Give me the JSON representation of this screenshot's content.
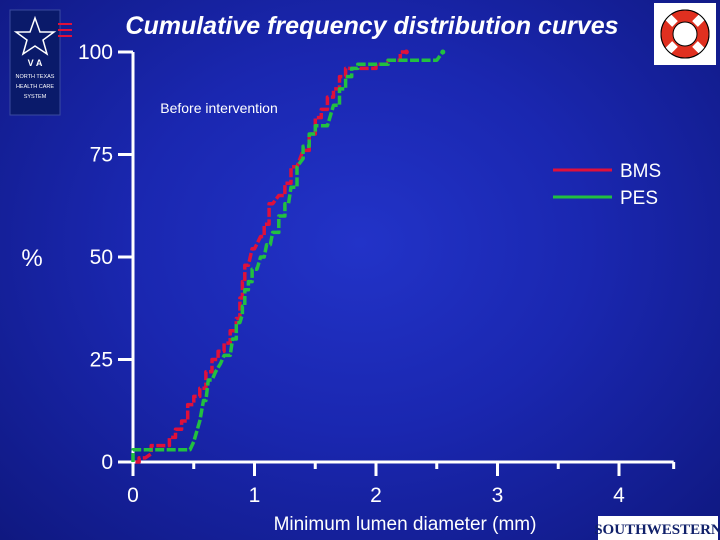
{
  "chart_data": {
    "type": "line",
    "title": "Cumulative frequency distribution curves",
    "annotation": "Before intervention",
    "xlabel": "Minimum lumen diameter (mm)",
    "ylabel": "%",
    "xlim": [
      0,
      4.45
    ],
    "ylim": [
      0,
      100
    ],
    "x_ticks": [
      "0",
      "1",
      "2",
      "3",
      "4"
    ],
    "y_ticks": [
      "0",
      "25",
      "50",
      "75",
      "100"
    ],
    "legend_position": "right",
    "series": [
      {
        "name": "BMS",
        "color": "#e0103a",
        "points": [
          [
            0.02,
            0
          ],
          [
            0.05,
            0
          ],
          [
            0.05,
            1
          ],
          [
            0.1,
            1
          ],
          [
            0.15,
            2
          ],
          [
            0.15,
            4
          ],
          [
            0.3,
            4
          ],
          [
            0.3,
            6
          ],
          [
            0.35,
            6
          ],
          [
            0.35,
            8
          ],
          [
            0.4,
            8
          ],
          [
            0.4,
            10
          ],
          [
            0.45,
            10
          ],
          [
            0.45,
            14
          ],
          [
            0.5,
            14
          ],
          [
            0.5,
            16
          ],
          [
            0.55,
            16
          ],
          [
            0.55,
            18
          ],
          [
            0.6,
            18
          ],
          [
            0.6,
            22
          ],
          [
            0.65,
            22
          ],
          [
            0.65,
            25
          ],
          [
            0.7,
            25
          ],
          [
            0.7,
            27
          ],
          [
            0.75,
            27
          ],
          [
            0.75,
            29
          ],
          [
            0.8,
            29
          ],
          [
            0.8,
            32
          ],
          [
            0.85,
            32
          ],
          [
            0.85,
            35
          ],
          [
            0.88,
            35
          ],
          [
            0.88,
            40
          ],
          [
            0.9,
            40
          ],
          [
            0.9,
            44
          ],
          [
            0.92,
            44
          ],
          [
            0.92,
            48
          ],
          [
            0.95,
            48
          ],
          [
            0.98,
            52
          ],
          [
            1.0,
            52
          ],
          [
            1.05,
            55
          ],
          [
            1.08,
            55
          ],
          [
            1.08,
            58
          ],
          [
            1.12,
            58
          ],
          [
            1.12,
            63
          ],
          [
            1.15,
            63
          ],
          [
            1.2,
            65
          ],
          [
            1.25,
            65
          ],
          [
            1.25,
            68
          ],
          [
            1.3,
            68
          ],
          [
            1.3,
            72
          ],
          [
            1.35,
            72
          ],
          [
            1.4,
            76
          ],
          [
            1.45,
            76
          ],
          [
            1.45,
            80
          ],
          [
            1.5,
            80
          ],
          [
            1.5,
            84
          ],
          [
            1.55,
            84
          ],
          [
            1.55,
            86
          ],
          [
            1.6,
            86
          ],
          [
            1.6,
            89
          ],
          [
            1.65,
            89
          ],
          [
            1.65,
            91
          ],
          [
            1.7,
            91
          ],
          [
            1.7,
            94
          ],
          [
            1.75,
            94
          ],
          [
            1.75,
            96
          ],
          [
            2.0,
            96
          ],
          [
            2.0,
            97
          ],
          [
            2.1,
            97
          ],
          [
            2.1,
            98
          ],
          [
            2.2,
            98
          ],
          [
            2.2,
            100
          ],
          [
            2.25,
            100
          ]
        ]
      },
      {
        "name": "PES",
        "color": "#22c040",
        "points": [
          [
            0.0,
            0
          ],
          [
            0.0,
            3
          ],
          [
            0.47,
            3
          ],
          [
            0.5,
            5
          ],
          [
            0.55,
            10
          ],
          [
            0.58,
            15
          ],
          [
            0.6,
            15
          ],
          [
            0.62,
            20
          ],
          [
            0.65,
            20
          ],
          [
            0.68,
            22
          ],
          [
            0.72,
            24
          ],
          [
            0.75,
            26
          ],
          [
            0.8,
            26
          ],
          [
            0.82,
            30
          ],
          [
            0.85,
            30
          ],
          [
            0.85,
            34
          ],
          [
            0.88,
            34
          ],
          [
            0.9,
            36
          ],
          [
            0.9,
            38
          ],
          [
            0.92,
            38
          ],
          [
            0.92,
            42
          ],
          [
            0.95,
            42
          ],
          [
            0.95,
            44
          ],
          [
            0.98,
            44
          ],
          [
            0.98,
            47
          ],
          [
            1.02,
            47
          ],
          [
            1.05,
            50
          ],
          [
            1.08,
            50
          ],
          [
            1.1,
            53
          ],
          [
            1.13,
            53
          ],
          [
            1.15,
            56
          ],
          [
            1.2,
            56
          ],
          [
            1.2,
            60
          ],
          [
            1.25,
            60
          ],
          [
            1.25,
            63
          ],
          [
            1.28,
            63
          ],
          [
            1.3,
            67
          ],
          [
            1.35,
            67
          ],
          [
            1.35,
            72
          ],
          [
            1.4,
            74
          ],
          [
            1.4,
            77
          ],
          [
            1.45,
            77
          ],
          [
            1.45,
            80
          ],
          [
            1.5,
            80
          ],
          [
            1.5,
            82
          ],
          [
            1.6,
            82
          ],
          [
            1.65,
            87
          ],
          [
            1.7,
            87
          ],
          [
            1.7,
            91
          ],
          [
            1.75,
            91
          ],
          [
            1.75,
            94
          ],
          [
            1.8,
            94
          ],
          [
            1.8,
            96
          ],
          [
            1.85,
            96
          ],
          [
            1.85,
            97
          ],
          [
            2.1,
            97
          ],
          [
            2.1,
            98
          ],
          [
            2.5,
            98
          ],
          [
            2.55,
            100
          ]
        ]
      }
    ]
  },
  "logos": {
    "left": "VA North Texas Health Care System",
    "right": "SOUTHWESTERN"
  },
  "colors": {
    "background": "#1a27b0",
    "axis": "#ffffff"
  }
}
